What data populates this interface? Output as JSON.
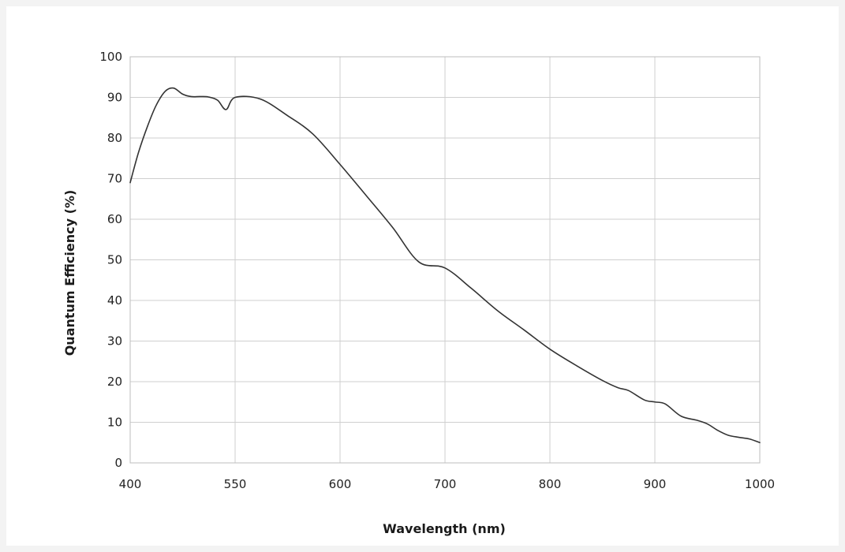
{
  "chart_data": {
    "type": "line",
    "title": "",
    "xlabel": "Wavelength (nm)",
    "ylabel": "Quantum Efficiency (%)",
    "x_ticks": [
      "400",
      "550",
      "600",
      "700",
      "800",
      "900",
      "1000"
    ],
    "y_ticks": [
      "0",
      "10",
      "20",
      "30",
      "40",
      "50",
      "60",
      "70",
      "80",
      "90",
      "100"
    ],
    "ylim": [
      0,
      100
    ],
    "grid": true,
    "series": [
      {
        "color": "#333333",
        "points": [
          [
            400,
            69
          ],
          [
            412,
            76.5
          ],
          [
            425,
            83
          ],
          [
            437,
            88
          ],
          [
            450,
            91.5
          ],
          [
            462,
            92.3
          ],
          [
            475,
            90.8
          ],
          [
            487,
            90.2
          ],
          [
            500,
            90.2
          ],
          [
            512,
            90.1
          ],
          [
            525,
            89.3
          ],
          [
            537,
            87
          ],
          [
            550,
            90
          ],
          [
            562,
            89.6
          ],
          [
            575,
            85.5
          ],
          [
            587,
            81
          ],
          [
            600,
            73.5
          ],
          [
            625,
            65.8
          ],
          [
            650,
            58
          ],
          [
            675,
            49.5
          ],
          [
            700,
            48
          ],
          [
            725,
            43
          ],
          [
            750,
            37.5
          ],
          [
            775,
            32.8
          ],
          [
            800,
            28
          ],
          [
            825,
            24
          ],
          [
            850,
            20.3
          ],
          [
            865,
            18.5
          ],
          [
            875,
            17.8
          ],
          [
            890,
            15.5
          ],
          [
            900,
            15
          ],
          [
            910,
            14.5
          ],
          [
            925,
            11.5
          ],
          [
            940,
            10.5
          ],
          [
            950,
            9.6
          ],
          [
            960,
            8
          ],
          [
            970,
            6.8
          ],
          [
            980,
            6.3
          ],
          [
            990,
            5.9
          ],
          [
            1000,
            5
          ]
        ]
      }
    ]
  }
}
